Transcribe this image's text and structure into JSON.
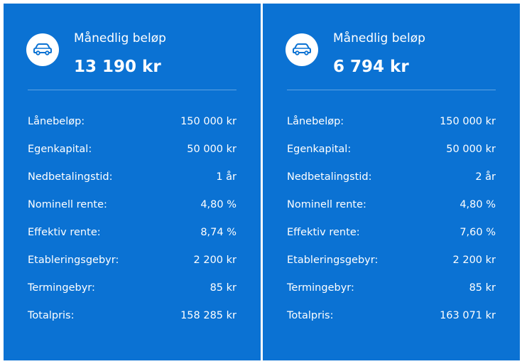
{
  "cards": [
    {
      "icon": "car-icon",
      "label": "Månedlig beløp",
      "amount": "13 190 kr",
      "rows": [
        {
          "label": "Lånebeløp:",
          "value": "150 000 kr"
        },
        {
          "label": "Egenkapital:",
          "value": "50 000 kr"
        },
        {
          "label": "Nedbetalingstid:",
          "value": "1 år"
        },
        {
          "label": "Nominell rente:",
          "value": "4,80 %"
        },
        {
          "label": "Effektiv rente:",
          "value": "8,74 %"
        },
        {
          "label": "Etableringsgebyr:",
          "value": "2 200 kr"
        },
        {
          "label": "Termingebyr:",
          "value": "85 kr"
        },
        {
          "label": "Totalpris:",
          "value": "158 285 kr"
        }
      ]
    },
    {
      "icon": "car-icon",
      "label": "Månedlig beløp",
      "amount": "6 794 kr",
      "rows": [
        {
          "label": "Lånebeløp:",
          "value": "150 000 kr"
        },
        {
          "label": "Egenkapital:",
          "value": "50 000 kr"
        },
        {
          "label": "Nedbetalingstid:",
          "value": "2 år"
        },
        {
          "label": "Nominell rente:",
          "value": "4,80 %"
        },
        {
          "label": "Effektiv rente:",
          "value": "7,60 %"
        },
        {
          "label": "Etableringsgebyr:",
          "value": "2 200 kr"
        },
        {
          "label": "Termingebyr:",
          "value": "85 kr"
        },
        {
          "label": "Totalpris:",
          "value": "163 071 kr"
        }
      ]
    }
  ],
  "colors": {
    "card_background": "#0b72d3",
    "text": "#ffffff",
    "icon_background": "#ffffff",
    "icon_foreground": "#0b72d3"
  }
}
